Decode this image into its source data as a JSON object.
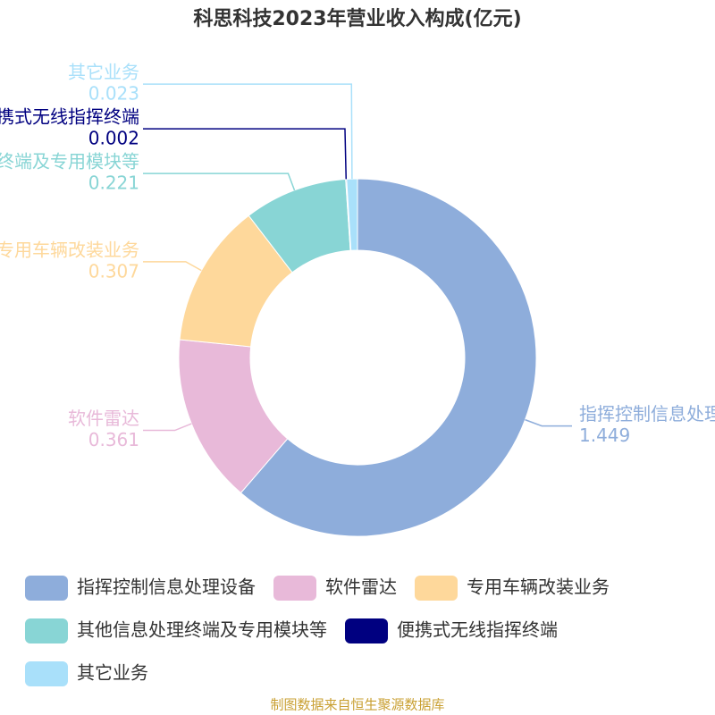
{
  "chart_data": {
    "type": "donut",
    "title": "科思科技2023年营业收入构成(亿元)",
    "categories": [
      "指挥控制信息处理设备",
      "软件雷达",
      "专用车辆改装业务",
      "其他信息处理终端及专用模块等",
      "便携式无线指挥终端",
      "其它业务"
    ],
    "values": [
      1.449,
      0.361,
      0.307,
      0.221,
      0.002,
      0.023
    ],
    "colors": [
      "#8eaddb",
      "#e8b9d9",
      "#fed89b",
      "#88d5d5",
      "#000080",
      "#a9e0fa"
    ],
    "legend": "bottom",
    "source": "制图数据来自恒生聚源数据库"
  }
}
